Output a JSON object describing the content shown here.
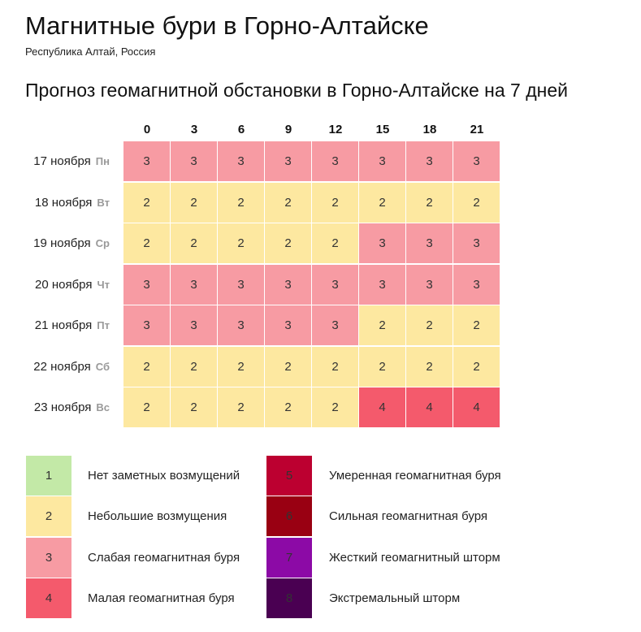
{
  "header": {
    "title": "Магнитные бури в Горно-Алтайске",
    "subtitle": "Республика Алтай, Россия"
  },
  "forecast": {
    "heading": "Прогноз геомагнитной обстановки в Горно-Алтайске на 7 дней",
    "hours": [
      "0",
      "3",
      "6",
      "9",
      "12",
      "15",
      "18",
      "21"
    ],
    "rows": [
      {
        "date": "17 ноября",
        "dow": "Пн",
        "values": [
          3,
          3,
          3,
          3,
          3,
          3,
          3,
          3
        ]
      },
      {
        "date": "18 ноября",
        "dow": "Вт",
        "values": [
          2,
          2,
          2,
          2,
          2,
          2,
          2,
          2
        ]
      },
      {
        "date": "19 ноября",
        "dow": "Ср",
        "values": [
          2,
          2,
          2,
          2,
          2,
          3,
          3,
          3
        ]
      },
      {
        "date": "20 ноября",
        "dow": "Чт",
        "values": [
          3,
          3,
          3,
          3,
          3,
          3,
          3,
          3
        ]
      },
      {
        "date": "21 ноября",
        "dow": "Пт",
        "values": [
          3,
          3,
          3,
          3,
          3,
          2,
          2,
          2
        ]
      },
      {
        "date": "22 ноября",
        "dow": "Сб",
        "values": [
          2,
          2,
          2,
          2,
          2,
          2,
          2,
          2
        ]
      },
      {
        "date": "23 ноября",
        "dow": "Вс",
        "values": [
          2,
          2,
          2,
          2,
          2,
          4,
          4,
          4
        ]
      }
    ]
  },
  "legend": [
    {
      "level": "1",
      "label": "Нет заметных возмущений",
      "color": "#c3e9a7"
    },
    {
      "level": "2",
      "label": "Небольшие возмущения",
      "color": "#fde8a0"
    },
    {
      "level": "3",
      "label": "Слабая геомагнитная буря",
      "color": "#f79ba3"
    },
    {
      "level": "4",
      "label": "Малая геомагнитная буря",
      "color": "#f45a6c"
    },
    {
      "level": "5",
      "label": "Умеренная геомагнитная буря",
      "color": "#bc0030"
    },
    {
      "level": "6",
      "label": "Сильная геомагнитная буря",
      "color": "#990012"
    },
    {
      "level": "7",
      "label": "Жесткий геомагнитный шторм",
      "color": "#8c0aa6"
    },
    {
      "level": "8",
      "label": "Экстремальный шторм",
      "color": "#4a0052"
    }
  ]
}
